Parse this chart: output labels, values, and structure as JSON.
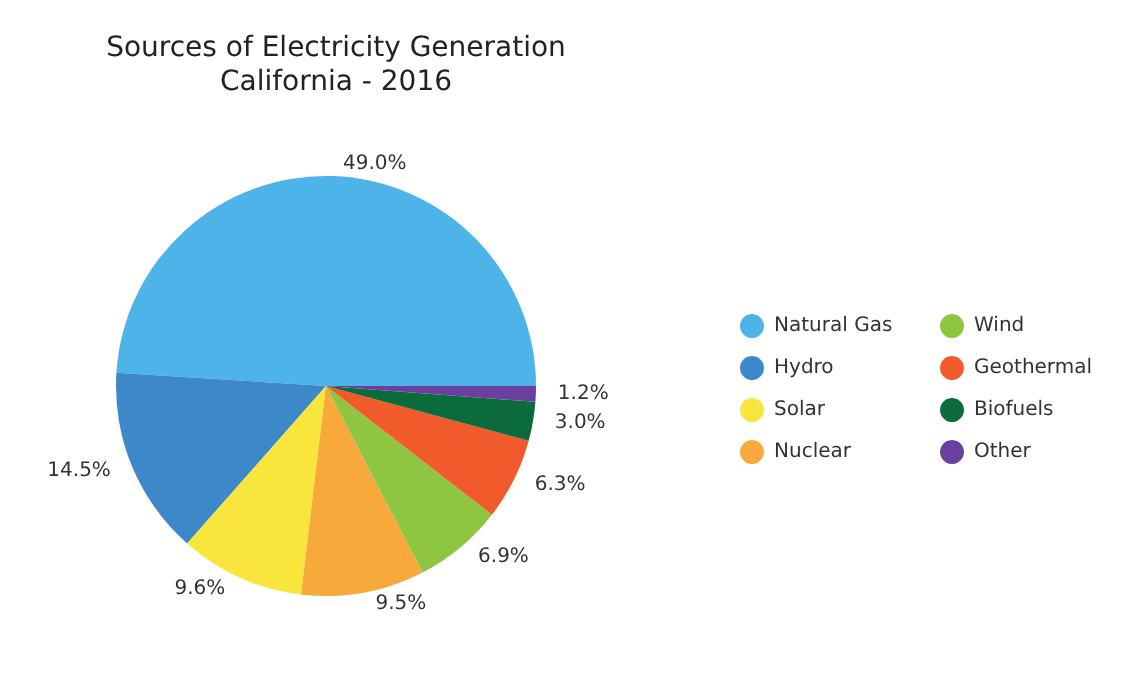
{
  "chart_data": {
    "type": "pie",
    "title": "Sources of Electricity Generation",
    "subtitle": "California - 2016",
    "categories": [
      "Natural Gas",
      "Hydro",
      "Solar",
      "Nuclear",
      "Wind",
      "Geothermal",
      "Biofuels",
      "Other"
    ],
    "values": [
      49.0,
      14.5,
      9.6,
      9.5,
      6.9,
      6.3,
      3.0,
      1.2
    ],
    "value_labels": [
      "49.0%",
      "14.5%",
      "9.6%",
      "9.5%",
      "6.9%",
      "6.3%",
      "3.0%",
      "1.2%"
    ],
    "colors": [
      "#4db3e8",
      "#3d88c8",
      "#f8e63c",
      "#f8a93c",
      "#8ec641",
      "#f15a2b",
      "#0c6b3b",
      "#6a3fa0"
    ],
    "legend": "right"
  }
}
